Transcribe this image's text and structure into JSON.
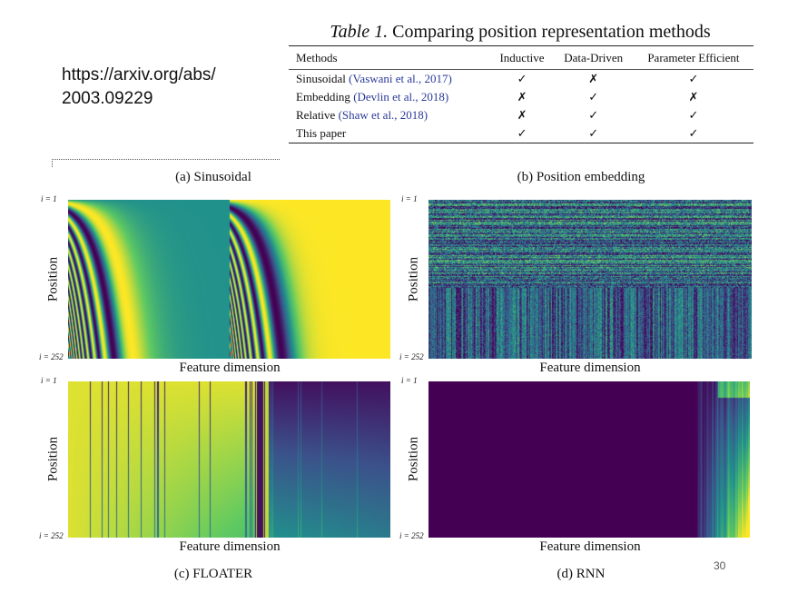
{
  "slide": {
    "url_line1": "https://arxiv.org/abs/",
    "url_line2": "2003.09229",
    "page_number": "30"
  },
  "table": {
    "title_label": "Table 1.",
    "title_text": "Comparing position representation methods",
    "headers": [
      "Methods",
      "Inductive",
      "Data-Driven",
      "Parameter Efficient"
    ],
    "rows": [
      {
        "method": "Sinusoidal",
        "cite": "(Vaswani et al., 2017)",
        "inductive": "✓",
        "data_driven": "✗",
        "param_efficient": "✓"
      },
      {
        "method": "Embedding",
        "cite": "(Devlin et al., 2018)",
        "inductive": "✗",
        "data_driven": "✓",
        "param_efficient": "✗"
      },
      {
        "method": "Relative",
        "cite": "(Shaw et al., 2018)",
        "inductive": "✗",
        "data_driven": "✓",
        "param_efficient": "✓"
      },
      {
        "method": "This paper",
        "cite": "",
        "inductive": "✓",
        "data_driven": "✓",
        "param_efficient": "✓"
      }
    ]
  },
  "figure": {
    "panels": [
      {
        "caption": "(a) Sinusoidal",
        "kind": "sinusoidal"
      },
      {
        "caption": "(b) Position embedding",
        "kind": "embedding"
      },
      {
        "caption": "(c) FLOATER",
        "kind": "floater"
      },
      {
        "caption": "(d) RNN",
        "kind": "rnn"
      }
    ],
    "ylabel": "Position",
    "xlabel": "Feature dimension",
    "y_top": "i = 1",
    "y_bottom": "i = 252",
    "colormap": [
      "#440154",
      "#3b528b",
      "#21918c",
      "#5ec962",
      "#fde725"
    ]
  }
}
